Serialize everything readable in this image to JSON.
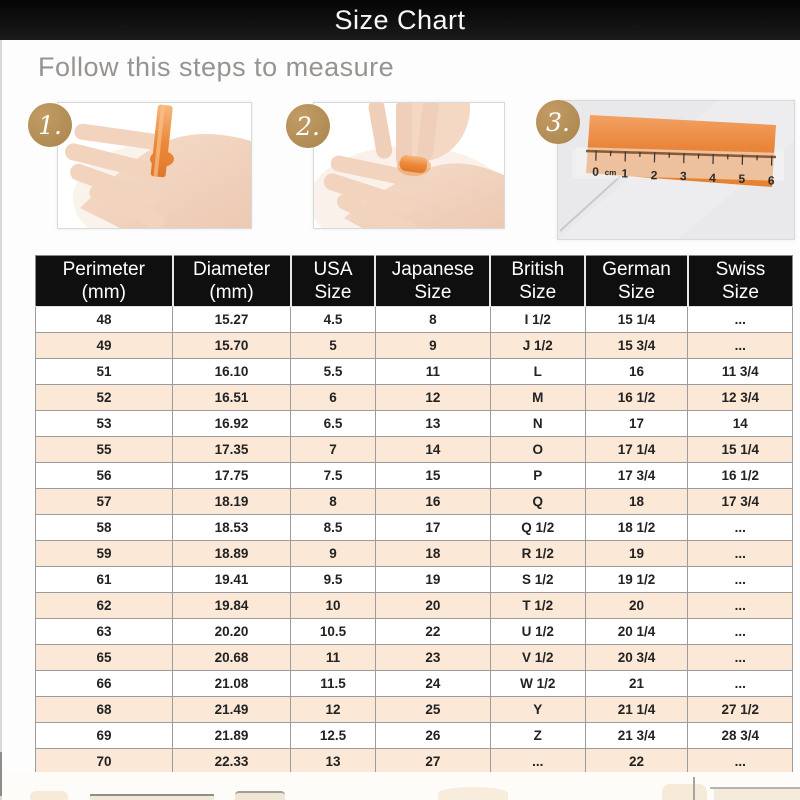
{
  "title_bar": {
    "title": "Size Chart"
  },
  "section": {
    "heading": "Follow this steps to measure"
  },
  "steps": [
    {
      "number": "1.",
      "photo": "hand-with-orange-tape-strip-on-ring-finger"
    },
    {
      "number": "2.",
      "photo": "fingers-marking-tape-length-around-finger"
    },
    {
      "number": "3.",
      "photo": "orange-tape-strip-measured-on-cm-ruler",
      "ruler_labels": [
        "0",
        "cm",
        "1",
        "2",
        "3",
        "4",
        "5",
        "6"
      ]
    }
  ],
  "chart_data": {
    "type": "table",
    "title": "Size Chart",
    "columns": [
      {
        "line1": "Perimeter",
        "line2": "(mm)"
      },
      {
        "line1": "Diameter",
        "line2": "(mm)"
      },
      {
        "line1": "USA",
        "line2": "Size"
      },
      {
        "line1": "Japanese",
        "line2": "Size"
      },
      {
        "line1": "British",
        "line2": "Size"
      },
      {
        "line1": "German",
        "line2": "Size"
      },
      {
        "line1": "Swiss",
        "line2": "Size"
      }
    ],
    "rows": [
      [
        "48",
        "15.27",
        "4.5",
        "8",
        "I 1/2",
        "15 1/4",
        "..."
      ],
      [
        "49",
        "15.70",
        "5",
        "9",
        "J 1/2",
        "15 3/4",
        "..."
      ],
      [
        "51",
        "16.10",
        "5.5",
        "11",
        "L",
        "16",
        "11 3/4"
      ],
      [
        "52",
        "16.51",
        "6",
        "12",
        "M",
        "16 1/2",
        "12 3/4"
      ],
      [
        "53",
        "16.92",
        "6.5",
        "13",
        "N",
        "17",
        "14"
      ],
      [
        "55",
        "17.35",
        "7",
        "14",
        "O",
        "17 1/4",
        "15 1/4"
      ],
      [
        "56",
        "17.75",
        "7.5",
        "15",
        "P",
        "17 3/4",
        "16 1/2"
      ],
      [
        "57",
        "18.19",
        "8",
        "16",
        "Q",
        "18",
        "17 3/4"
      ],
      [
        "58",
        "18.53",
        "8.5",
        "17",
        "Q 1/2",
        "18 1/2",
        "..."
      ],
      [
        "59",
        "18.89",
        "9",
        "18",
        "R 1/2",
        "19",
        "..."
      ],
      [
        "61",
        "19.41",
        "9.5",
        "19",
        "S 1/2",
        "19 1/2",
        "..."
      ],
      [
        "62",
        "19.84",
        "10",
        "20",
        "T 1/2",
        "20",
        "..."
      ],
      [
        "63",
        "20.20",
        "10.5",
        "22",
        "U 1/2",
        "20 1/4",
        "..."
      ],
      [
        "65",
        "20.68",
        "11",
        "23",
        "V 1/2",
        "20 3/4",
        "..."
      ],
      [
        "66",
        "21.08",
        "11.5",
        "24",
        "W 1/2",
        "21",
        "..."
      ],
      [
        "68",
        "21.49",
        "12",
        "25",
        "Y",
        "21 1/4",
        "27 1/2"
      ],
      [
        "69",
        "21.89",
        "12.5",
        "26",
        "Z",
        "21 3/4",
        "28 3/4"
      ],
      [
        "70",
        "22.33",
        "13",
        "27",
        "...",
        "22",
        "..."
      ]
    ]
  },
  "colors": {
    "header_bg": "#0f0f0f",
    "header_text": "#ffffff",
    "row_alt_bg": "#fbe8d6",
    "row_border": "#9c9c9c",
    "badge_gold": "#b28e55",
    "tape_orange": "#ec8a3c",
    "heading_gray": "#979390"
  }
}
